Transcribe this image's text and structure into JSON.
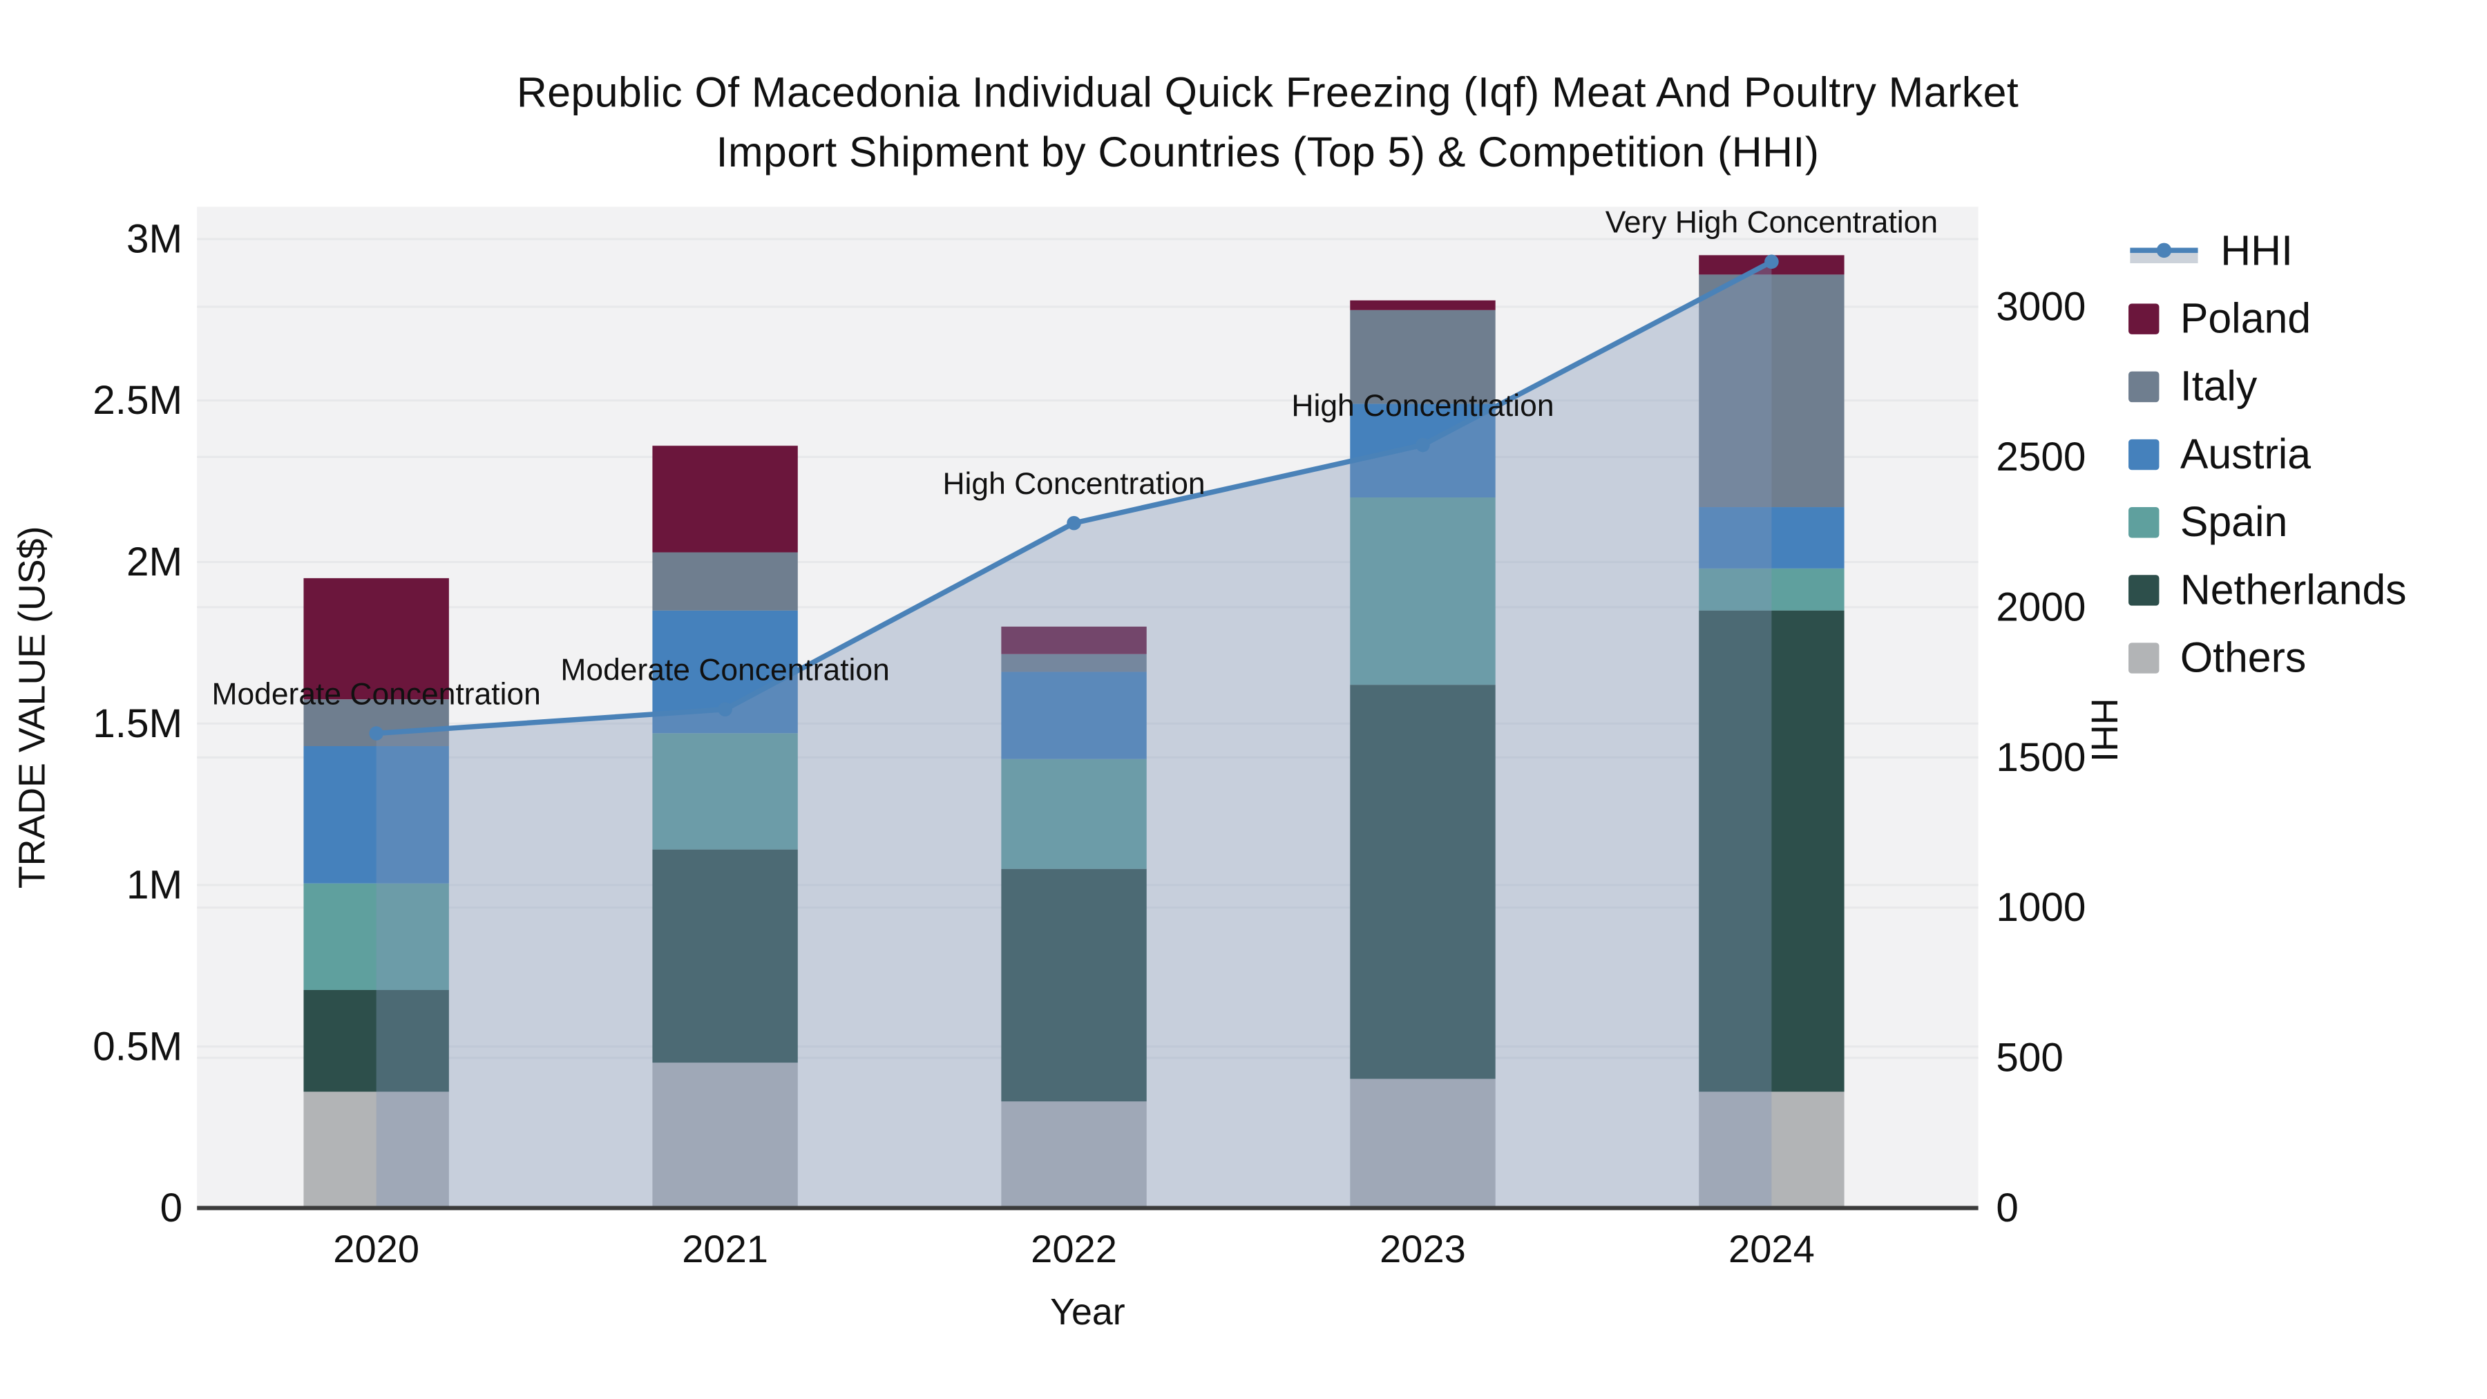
{
  "title": {
    "line1": "Republic Of Macedonia Individual Quick Freezing (Iqf) Meat And Poultry Market",
    "line2": "Import Shipment by Countries (Top 5) & Competition (HHI)"
  },
  "legend": {
    "items": [
      {
        "label": "HHI",
        "type": "line-area"
      },
      {
        "label": "Poland",
        "color": "#6B163C"
      },
      {
        "label": "Italy",
        "color": "#6F7E8F"
      },
      {
        "label": "Austria",
        "color": "#4581BC"
      },
      {
        "label": "Spain",
        "color": "#5FA09E"
      },
      {
        "label": "Netherlands",
        "color": "#2D4F4B"
      },
      {
        "label": "Others",
        "color": "#B2B4B6"
      }
    ]
  },
  "chart_data": {
    "type": "stacked-bar+line",
    "title": "Republic Of Macedonia Individual Quick Freezing (Iqf) Meat And Poultry Market Import Shipment by Countries (Top 5) & Competition (HHI)",
    "xlabel": "Year",
    "ylabel_left": "TRADE VALUE (US$)",
    "ylabel_right": "HHI",
    "categories": [
      "2020",
      "2021",
      "2022",
      "2023",
      "2024"
    ],
    "ylim_left": [
      0,
      3100000
    ],
    "ylim_right": [
      0,
      3333
    ],
    "grid": true,
    "legend_position": "right",
    "yticks_left": [
      {
        "label": "0",
        "value": 0
      },
      {
        "label": "0.5M",
        "value": 500000
      },
      {
        "label": "1M",
        "value": 1000000
      },
      {
        "label": "1.5M",
        "value": 1500000
      },
      {
        "label": "2M",
        "value": 2000000
      },
      {
        "label": "2.5M",
        "value": 2500000
      },
      {
        "label": "3M",
        "value": 3000000
      }
    ],
    "yticks_right": [
      {
        "label": "0",
        "value": 0
      },
      {
        "label": "500",
        "value": 500
      },
      {
        "label": "1000",
        "value": 1000
      },
      {
        "label": "1500",
        "value": 1500
      },
      {
        "label": "2000",
        "value": 2000
      },
      {
        "label": "2500",
        "value": 2500
      },
      {
        "label": "3000",
        "value": 3000
      }
    ],
    "series": [
      {
        "name": "Others",
        "color": "#B2B4B6",
        "values": [
          360000,
          450000,
          330000,
          400000,
          360000
        ]
      },
      {
        "name": "Netherlands",
        "color": "#2D4F4B",
        "values": [
          315000,
          660000,
          720000,
          1220000,
          1490000
        ]
      },
      {
        "name": "Spain",
        "color": "#5FA09E",
        "values": [
          330000,
          360000,
          340000,
          580000,
          130000
        ]
      },
      {
        "name": "Austria",
        "color": "#4581BC",
        "values": [
          425000,
          380000,
          270000,
          290000,
          190000
        ]
      },
      {
        "name": "Italy",
        "color": "#6F7E8F",
        "values": [
          145000,
          180000,
          55000,
          290000,
          720000
        ]
      },
      {
        "name": "Poland",
        "color": "#6B163C",
        "values": [
          375000,
          330000,
          85000,
          30000,
          60000
        ]
      }
    ],
    "bar_totals": [
      1950000,
      2360000,
      1800000,
      2810000,
      2950000
    ],
    "hhi": {
      "name": "HHI",
      "values": [
        1580,
        1660,
        2280,
        2540,
        3150
      ],
      "line_color": "#4A82B8",
      "area_color": "#8095B8",
      "area_opacity": 0.38,
      "legend_band_color": "#CCD2DA"
    },
    "annotations": [
      {
        "category": "2020",
        "text": "Moderate Concentration"
      },
      {
        "category": "2021",
        "text": "Moderate Concentration"
      },
      {
        "category": "2022",
        "text": "High Concentration"
      },
      {
        "category": "2023",
        "text": "High Concentration"
      },
      {
        "category": "2024",
        "text": "Very High Concentration"
      }
    ],
    "colors": {
      "plot_bg": "#F2F2F3",
      "grid": "#E7E8EA",
      "axis_line": "#3B3B3B",
      "text": "#111111"
    }
  }
}
